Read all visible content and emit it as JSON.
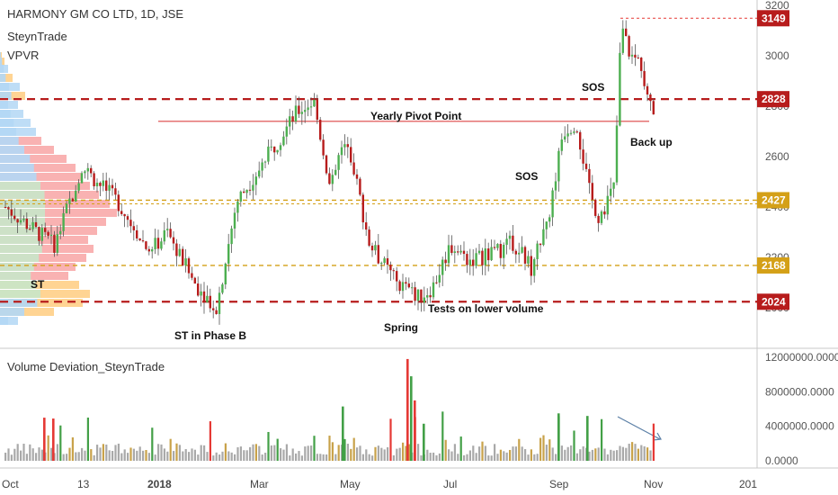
{
  "legend": {
    "symbol": "HARMONY GM CO LTD, 1D, JSE",
    "author": "SteynTrade",
    "indicator": "VPVR"
  },
  "volume_pane": {
    "title": "Volume Deviation_SteynTrade"
  },
  "colors": {
    "up": "#26a69a",
    "down": "#ef5350",
    "candle_up": "#4caf50",
    "candle_down": "#b71c1c",
    "dark_red_level": "#b71c1c",
    "gold_level": "#d4a017",
    "pivot_line": "#e57373",
    "vol_green": "#43a047",
    "vol_red": "#e53935",
    "vol_gold": "#c8a24a",
    "vol_gray": "#a9a9a9",
    "vpvr_blue": "#b3d7f5",
    "vpvr_green": "#c8e6c9",
    "vpvr_red": "#f8a5a5",
    "vpvr_orange": "#ffcc80"
  },
  "chart_data": [
    {
      "type": "candlestick",
      "title": "HARMONY GM CO LTD, 1D, JSE",
      "ylim": [
        1900,
        3200
      ],
      "y_ticks": [
        "2000",
        "2200",
        "2400",
        "2600",
        "2800",
        "3000",
        "3200"
      ],
      "x_ticks": [
        "Oct",
        "13",
        "2018",
        "Mar",
        "May",
        "Jul",
        "Sep",
        "Nov",
        "201"
      ],
      "price_levels": [
        {
          "value": 3149,
          "label": "3149",
          "style": "dark-red-box"
        },
        {
          "value": 2828,
          "label": "2828",
          "style": "dark-red-box"
        },
        {
          "value": 2427,
          "label": "2427",
          "style": "gold-box"
        },
        {
          "value": 2168,
          "label": "2168",
          "style": "gold-box"
        },
        {
          "value": 2024,
          "label": "2024",
          "style": "dark-red-box"
        }
      ],
      "annotations": [
        "ST",
        "ST in Phase B",
        "Yearly Pivot Point",
        "Spring",
        "Tests on lower volume",
        "SOS",
        "SOS",
        "Back up"
      ],
      "series": [
        {
          "x": [
            "Oct",
            "13",
            "2018",
            "Mar",
            "May",
            "Jul",
            "Sep",
            "Nov"
          ],
          "close": [
            2400,
            2600,
            2280,
            2780,
            2380,
            2150,
            2350,
            2828
          ]
        }
      ]
    },
    {
      "type": "bar",
      "title": "Volume Deviation_SteynTrade",
      "ylim": [
        0,
        12000000
      ],
      "y_ticks": [
        "0.0000",
        "4000000.0000",
        "8000000.0000",
        "12000000.0000"
      ]
    }
  ]
}
